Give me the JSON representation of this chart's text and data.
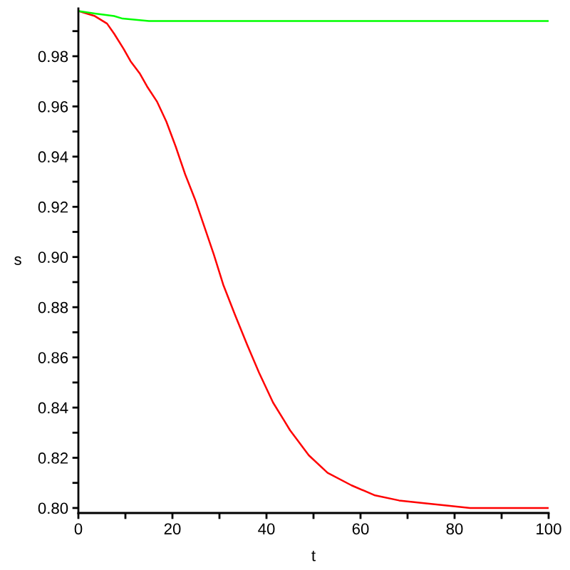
{
  "chart_data": {
    "type": "line",
    "xlabel": "t",
    "ylabel": "s",
    "xlim": [
      0,
      100
    ],
    "ylim": [
      0.798,
      0.999
    ],
    "xticks": [
      0,
      {
        "value": 10,
        "label": null
      },
      20,
      {
        "value": 30,
        "label": null
      },
      40,
      {
        "value": 50,
        "label": null
      },
      60,
      {
        "value": 70,
        "label": null
      },
      80,
      {
        "value": 90,
        "label": null
      },
      100
    ],
    "yticks": [
      {
        "value": 0.8,
        "label": "0.80"
      },
      {
        "value": 0.81,
        "label": null
      },
      0.82,
      {
        "value": 0.83,
        "label": null
      },
      0.84,
      {
        "value": 0.85,
        "label": null
      },
      0.86,
      {
        "value": 0.87,
        "label": null
      },
      0.88,
      {
        "value": 0.89,
        "label": null
      },
      {
        "value": 0.9,
        "label": "0.90"
      },
      {
        "value": 0.91,
        "label": null
      },
      0.92,
      {
        "value": 0.93,
        "label": null
      },
      0.94,
      {
        "value": 0.95,
        "label": null
      },
      0.96,
      {
        "value": 0.97,
        "label": null
      },
      0.98,
      {
        "value": 0.99,
        "label": null
      }
    ],
    "grid": false,
    "legend": false,
    "marker": "none",
    "line_style": "solid",
    "series": [
      {
        "color": "#ff0000",
        "x": [
          0,
          3.5,
          6.1,
          7.6,
          9.6,
          11.1,
          13.1,
          14.6,
          16.7,
          18.7,
          20.7,
          22.7,
          24.8,
          26.8,
          28.8,
          30.8,
          33.3,
          35.9,
          38.4,
          41.4,
          43.7,
          45,
          49,
          53,
          58.1,
          63.1,
          68.2,
          73.2,
          78.3,
          83.3,
          88.4,
          100
        ],
        "values": [
          0.998,
          0.996,
          0.993,
          0.989,
          0.983,
          0.978,
          0.973,
          0.968,
          0.962,
          0.954,
          0.944,
          0.933,
          0.923,
          0.912,
          0.901,
          0.889,
          0.877,
          0.865,
          0.854,
          0.842,
          0.835,
          0.831,
          0.821,
          0.814,
          0.809,
          0.805,
          0.803,
          0.802,
          0.801,
          0.8,
          0.8,
          0.8
        ]
      },
      {
        "color": "#00ff00",
        "x": [
          0,
          3.5,
          7.6,
          9.4,
          15,
          21.7,
          100
        ],
        "values": [
          0.998,
          0.997,
          0.996,
          0.995,
          0.994,
          0.994,
          0.994
        ]
      }
    ]
  }
}
